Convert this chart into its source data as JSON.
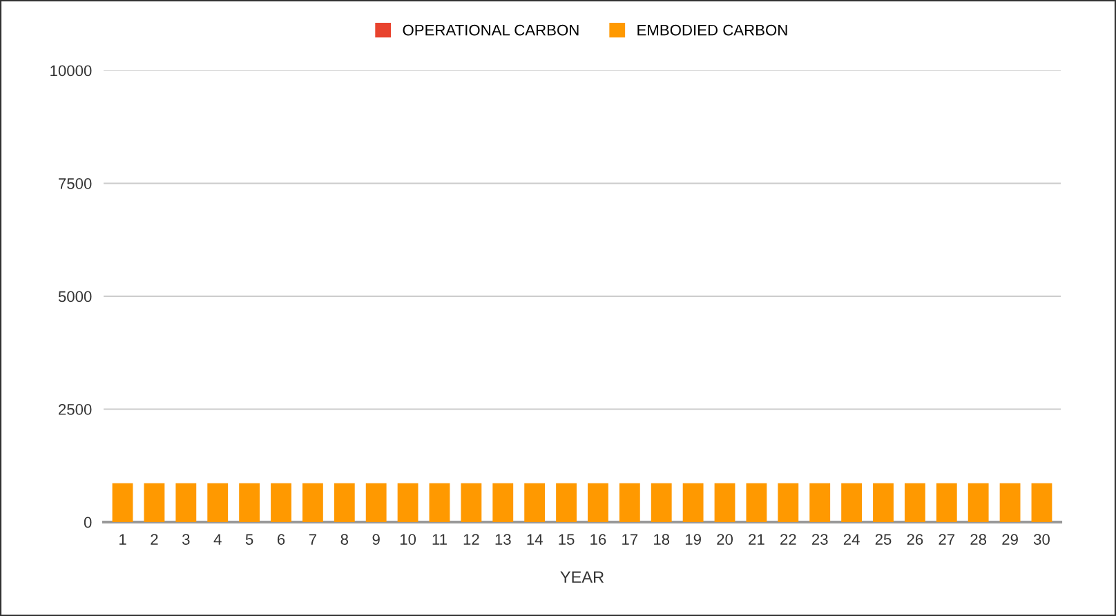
{
  "chart_data": {
    "type": "bar",
    "stacked": true,
    "xlabel": "YEAR",
    "categories": [
      "1",
      "2",
      "3",
      "4",
      "5",
      "6",
      "7",
      "8",
      "9",
      "10",
      "11",
      "12",
      "13",
      "14",
      "15",
      "16",
      "17",
      "18",
      "19",
      "20",
      "21",
      "22",
      "23",
      "24",
      "25",
      "26",
      "27",
      "28",
      "29",
      "30"
    ],
    "series": [
      {
        "name": "OPERATIONAL CARBON",
        "color": "#e8432e",
        "values": [
          0,
          0,
          0,
          0,
          0,
          0,
          0,
          0,
          0,
          0,
          0,
          0,
          0,
          0,
          0,
          0,
          0,
          0,
          0,
          0,
          0,
          0,
          0,
          0,
          0,
          0,
          0,
          0,
          0,
          0
        ]
      },
      {
        "name": "EMBODIED CARBON",
        "color": "#ff9900",
        "values": [
          860,
          860,
          860,
          860,
          860,
          860,
          860,
          860,
          860,
          860,
          860,
          860,
          860,
          860,
          860,
          860,
          860,
          860,
          860,
          860,
          860,
          860,
          860,
          860,
          860,
          860,
          860,
          860,
          860,
          860
        ]
      }
    ],
    "ylim": [
      0,
      10000
    ],
    "yticks": [
      0,
      2500,
      5000,
      7500,
      10000
    ],
    "grid": "y",
    "legend": "top"
  }
}
